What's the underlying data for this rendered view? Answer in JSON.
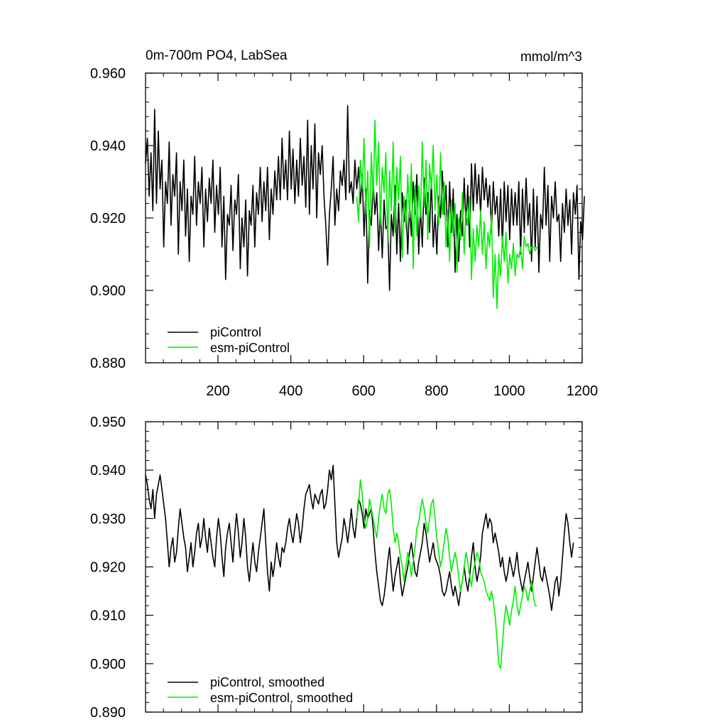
{
  "chart_data": [
    {
      "type": "line",
      "title": "0m-700m PO4, LabSea",
      "units": "mmol/m^3",
      "xlabel": "",
      "ylabel": "",
      "xlim": [
        1,
        1200
      ],
      "ylim": [
        0.88,
        0.96
      ],
      "x_ticks": [
        200,
        400,
        600,
        800,
        1000,
        1200
      ],
      "x_tick_labels": [
        "200",
        "400",
        "600",
        "800",
        "1000",
        "1200"
      ],
      "y_ticks": [
        0.88,
        0.9,
        0.92,
        0.94,
        0.96
      ],
      "y_tick_labels": [
        "0.880",
        "0.900",
        "0.920",
        "0.940",
        "0.960"
      ],
      "legend_position": "bottom-left",
      "series": [
        {
          "name": "piControl",
          "color": "#000000",
          "x_start": 1,
          "x_step": 5,
          "values": [
            0.935,
            0.942,
            0.926,
            0.938,
            0.922,
            0.95,
            0.924,
            0.944,
            0.928,
            0.936,
            0.912,
            0.93,
            0.924,
            0.941,
            0.918,
            0.932,
            0.926,
            0.938,
            0.91,
            0.93,
            0.922,
            0.936,
            0.915,
            0.928,
            0.908,
            0.926,
            0.921,
            0.937,
            0.918,
            0.93,
            0.924,
            0.934,
            0.912,
            0.928,
            0.919,
            0.931,
            0.924,
            0.936,
            0.916,
            0.929,
            0.921,
            0.934,
            0.912,
            0.926,
            0.903,
            0.921,
            0.918,
            0.929,
            0.911,
            0.925,
            0.921,
            0.932,
            0.906,
            0.92,
            0.912,
            0.925,
            0.904,
            0.922,
            0.918,
            0.929,
            0.912,
            0.927,
            0.921,
            0.934,
            0.919,
            0.93,
            0.922,
            0.934,
            0.914,
            0.928,
            0.921,
            0.933,
            0.925,
            0.937,
            0.925,
            0.942,
            0.928,
            0.936,
            0.925,
            0.944,
            0.928,
            0.939,
            0.924,
            0.936,
            0.926,
            0.942,
            0.929,
            0.937,
            0.923,
            0.947,
            0.921,
            0.94,
            0.928,
            0.946,
            0.92,
            0.938,
            0.932,
            0.94,
            0.926,
            0.918,
            0.907,
            0.921,
            0.928,
            0.937,
            0.918,
            0.928,
            0.922,
            0.933,
            0.929,
            0.936,
            0.925,
            0.951,
            0.927,
            0.93,
            0.924,
            0.936,
            0.928,
            0.934,
            0.924,
            0.932,
            0.915,
            0.928,
            0.902,
            0.922,
            0.918,
            0.93,
            0.921,
            0.927,
            0.911,
            0.923,
            0.909,
            0.925,
            0.917,
            0.918,
            0.9,
            0.921,
            0.915,
            0.929,
            0.91,
            0.924,
            0.908,
            0.927,
            0.919,
            0.925,
            0.91,
            0.924,
            0.915,
            0.93,
            0.921,
            0.932,
            0.91,
            0.923,
            0.912,
            0.931,
            0.921,
            0.927,
            0.916,
            0.931,
            0.912,
            0.921,
            0.91,
            0.926,
            0.92,
            0.933,
            0.921,
            0.929,
            0.912,
            0.93,
            0.916,
            0.928,
            0.905,
            0.921,
            0.908,
            0.922,
            0.915,
            0.931,
            0.918,
            0.929,
            0.912,
            0.935,
            0.922,
            0.935,
            0.924,
            0.932,
            0.921,
            0.934,
            0.925,
            0.931,
            0.923,
            0.929,
            0.916,
            0.93,
            0.921,
            0.926,
            0.915,
            0.928,
            0.912,
            0.93,
            0.919,
            0.929,
            0.914,
            0.928,
            0.918,
            0.927,
            0.918,
            0.93,
            0.91,
            0.928,
            0.916,
            0.931,
            0.918,
            0.924,
            0.908,
            0.928,
            0.912,
            0.926,
            0.905,
            0.921,
            0.917,
            0.934,
            0.918,
            0.929,
            0.908,
            0.926,
            0.92,
            0.93,
            0.919,
            0.921,
            0.908,
            0.924,
            0.916,
            0.928,
            0.918,
            0.925,
            0.91,
            0.927,
            0.921,
            0.929,
            0.903,
            0.919,
            0.914,
            0.926
          ]
        },
        {
          "name": "esm-piControl",
          "color": "#00ee00",
          "x_start": 581,
          "x_step": 5,
          "values": [
            0.926,
            0.919,
            0.936,
            0.928,
            0.942,
            0.921,
            0.933,
            0.912,
            0.938,
            0.925,
            0.947,
            0.929,
            0.941,
            0.918,
            0.934,
            0.927,
            0.938,
            0.913,
            0.933,
            0.922,
            0.941,
            0.916,
            0.934,
            0.925,
            0.937,
            0.909,
            0.926,
            0.917,
            0.932,
            0.92,
            0.935,
            0.906,
            0.929,
            0.915,
            0.929,
            0.92,
            0.941,
            0.923,
            0.936,
            0.914,
            0.935,
            0.928,
            0.94,
            0.922,
            0.932,
            0.918,
            0.938,
            0.921,
            0.93,
            0.912,
            0.922,
            0.908,
            0.925,
            0.915,
            0.924,
            0.905,
            0.92,
            0.914,
            0.927,
            0.91,
            0.922,
            0.918,
            0.926,
            0.903,
            0.917,
            0.908,
            0.918,
            0.912,
            0.922,
            0.91,
            0.919,
            0.906,
            0.916,
            0.912,
            0.921,
            0.898,
            0.91,
            0.895,
            0.91,
            0.904,
            0.915,
            0.908,
            0.916,
            0.902,
            0.91,
            0.906,
            0.913,
            0.904,
            0.91,
            0.909,
            0.912,
            0.906,
            0.915,
            0.912,
            0.913,
            0.91,
            0.912,
            0.912,
            0.911,
            0.912
          ]
        }
      ]
    },
    {
      "type": "line",
      "title": "",
      "xlabel": "",
      "ylabel": "",
      "xlim": [
        1,
        1200
      ],
      "ylim": [
        0.89,
        0.95
      ],
      "x_ticks": [
        200,
        400,
        600,
        800,
        1000,
        1200
      ],
      "x_tick_labels": [],
      "y_ticks": [
        0.89,
        0.9,
        0.91,
        0.92,
        0.93,
        0.94,
        0.95
      ],
      "y_tick_labels": [
        "0.890",
        "0.900",
        "0.910",
        "0.920",
        "0.930",
        "0.940",
        "0.950"
      ],
      "legend_position": "bottom-left",
      "series": [
        {
          "name": "piControl, smoothed",
          "color": "#000000",
          "x_start": 1,
          "x_step": 5,
          "values": [
            0.939,
            0.937,
            0.934,
            0.932,
            0.936,
            0.93,
            0.935,
            0.937,
            0.939,
            0.936,
            0.933,
            0.93,
            0.925,
            0.92,
            0.924,
            0.926,
            0.921,
            0.923,
            0.928,
            0.932,
            0.929,
            0.926,
            0.924,
            0.919,
            0.922,
            0.925,
            0.92,
            0.923,
            0.927,
            0.929,
            0.924,
            0.926,
            0.93,
            0.926,
            0.923,
            0.928,
            0.925,
            0.922,
            0.92,
            0.926,
            0.93,
            0.927,
            0.922,
            0.918,
            0.924,
            0.927,
            0.929,
            0.925,
            0.921,
            0.927,
            0.931,
            0.927,
            0.922,
            0.925,
            0.93,
            0.926,
            0.92,
            0.917,
            0.921,
            0.925,
            0.921,
            0.919,
            0.923,
            0.926,
            0.929,
            0.932,
            0.925,
            0.919,
            0.915,
            0.921,
            0.918,
            0.921,
            0.925,
            0.922,
            0.92,
            0.924,
            0.923,
            0.925,
            0.928,
            0.93,
            0.927,
            0.925,
            0.928,
            0.931,
            0.929,
            0.925,
            0.928,
            0.932,
            0.935,
            0.936,
            0.937,
            0.934,
            0.932,
            0.935,
            0.934,
            0.933,
            0.935,
            0.936,
            0.932,
            0.933,
            0.936,
            0.94,
            0.938,
            0.941,
            0.933,
            0.925,
            0.922,
            0.924,
            0.926,
            0.93,
            0.928,
            0.925,
            0.928,
            0.932,
            0.928,
            0.926,
            0.93,
            0.934,
            0.933,
            0.931,
            0.928,
            0.932,
            0.93,
            0.931,
            0.932,
            0.928,
            0.923,
            0.919,
            0.916,
            0.913,
            0.912,
            0.914,
            0.917,
            0.921,
            0.924,
            0.919,
            0.915,
            0.918,
            0.92,
            0.922,
            0.917,
            0.914,
            0.916,
            0.918,
            0.92,
            0.923,
            0.925,
            0.922,
            0.919,
            0.918,
            0.921,
            0.923,
            0.925,
            0.929,
            0.927,
            0.924,
            0.921,
            0.923,
            0.925,
            0.922,
            0.921,
            0.92,
            0.918,
            0.915,
            0.914,
            0.915,
            0.917,
            0.919,
            0.916,
            0.914,
            0.916,
            0.914,
            0.912,
            0.915,
            0.917,
            0.92,
            0.917,
            0.915,
            0.918,
            0.922,
            0.925,
            0.92,
            0.917,
            0.919,
            0.922,
            0.927,
            0.929,
            0.931,
            0.928,
            0.93,
            0.929,
            0.925,
            0.927,
            0.925,
            0.923,
            0.92,
            0.922,
            0.919,
            0.917,
            0.919,
            0.922,
            0.92,
            0.918,
            0.92,
            0.923,
            0.919,
            0.917,
            0.915,
            0.917,
            0.919,
            0.921,
            0.918,
            0.915,
            0.918,
            0.921,
            0.924,
            0.921,
            0.918,
            0.917,
            0.92,
            0.918,
            0.916,
            0.914,
            0.911,
            0.914,
            0.917,
            0.918,
            0.914,
            0.917,
            0.922,
            0.927,
            0.931,
            0.929,
            0.925,
            0.922,
            0.925
          ]
        },
        {
          "name": "esm-piControl, smoothed",
          "color": "#00ee00",
          "x_start": 581,
          "x_step": 5,
          "values": [
            0.93,
            0.933,
            0.938,
            0.935,
            0.93,
            0.928,
            0.93,
            0.934,
            0.932,
            0.93,
            0.928,
            0.926,
            0.93,
            0.933,
            0.935,
            0.932,
            0.931,
            0.935,
            0.936,
            0.933,
            0.928,
            0.925,
            0.927,
            0.925,
            0.922,
            0.92,
            0.917,
            0.92,
            0.923,
            0.921,
            0.918,
            0.921,
            0.924,
            0.928,
            0.929,
            0.932,
            0.934,
            0.932,
            0.929,
            0.927,
            0.93,
            0.933,
            0.934,
            0.93,
            0.926,
            0.923,
            0.92,
            0.922,
            0.925,
            0.928,
            0.926,
            0.922,
            0.919,
            0.921,
            0.923,
            0.921,
            0.918,
            0.915,
            0.917,
            0.92,
            0.923,
            0.921,
            0.918,
            0.916,
            0.919,
            0.921,
            0.923,
            0.922,
            0.919,
            0.918,
            0.917,
            0.915,
            0.914,
            0.913,
            0.915,
            0.913,
            0.91,
            0.905,
            0.9,
            0.899,
            0.904,
            0.909,
            0.912,
            0.91,
            0.908,
            0.911,
            0.913,
            0.916,
            0.912,
            0.91,
            0.912,
            0.914,
            0.916,
            0.915,
            0.913,
            0.915,
            0.917,
            0.914,
            0.912,
            0.912
          ]
        }
      ]
    }
  ]
}
